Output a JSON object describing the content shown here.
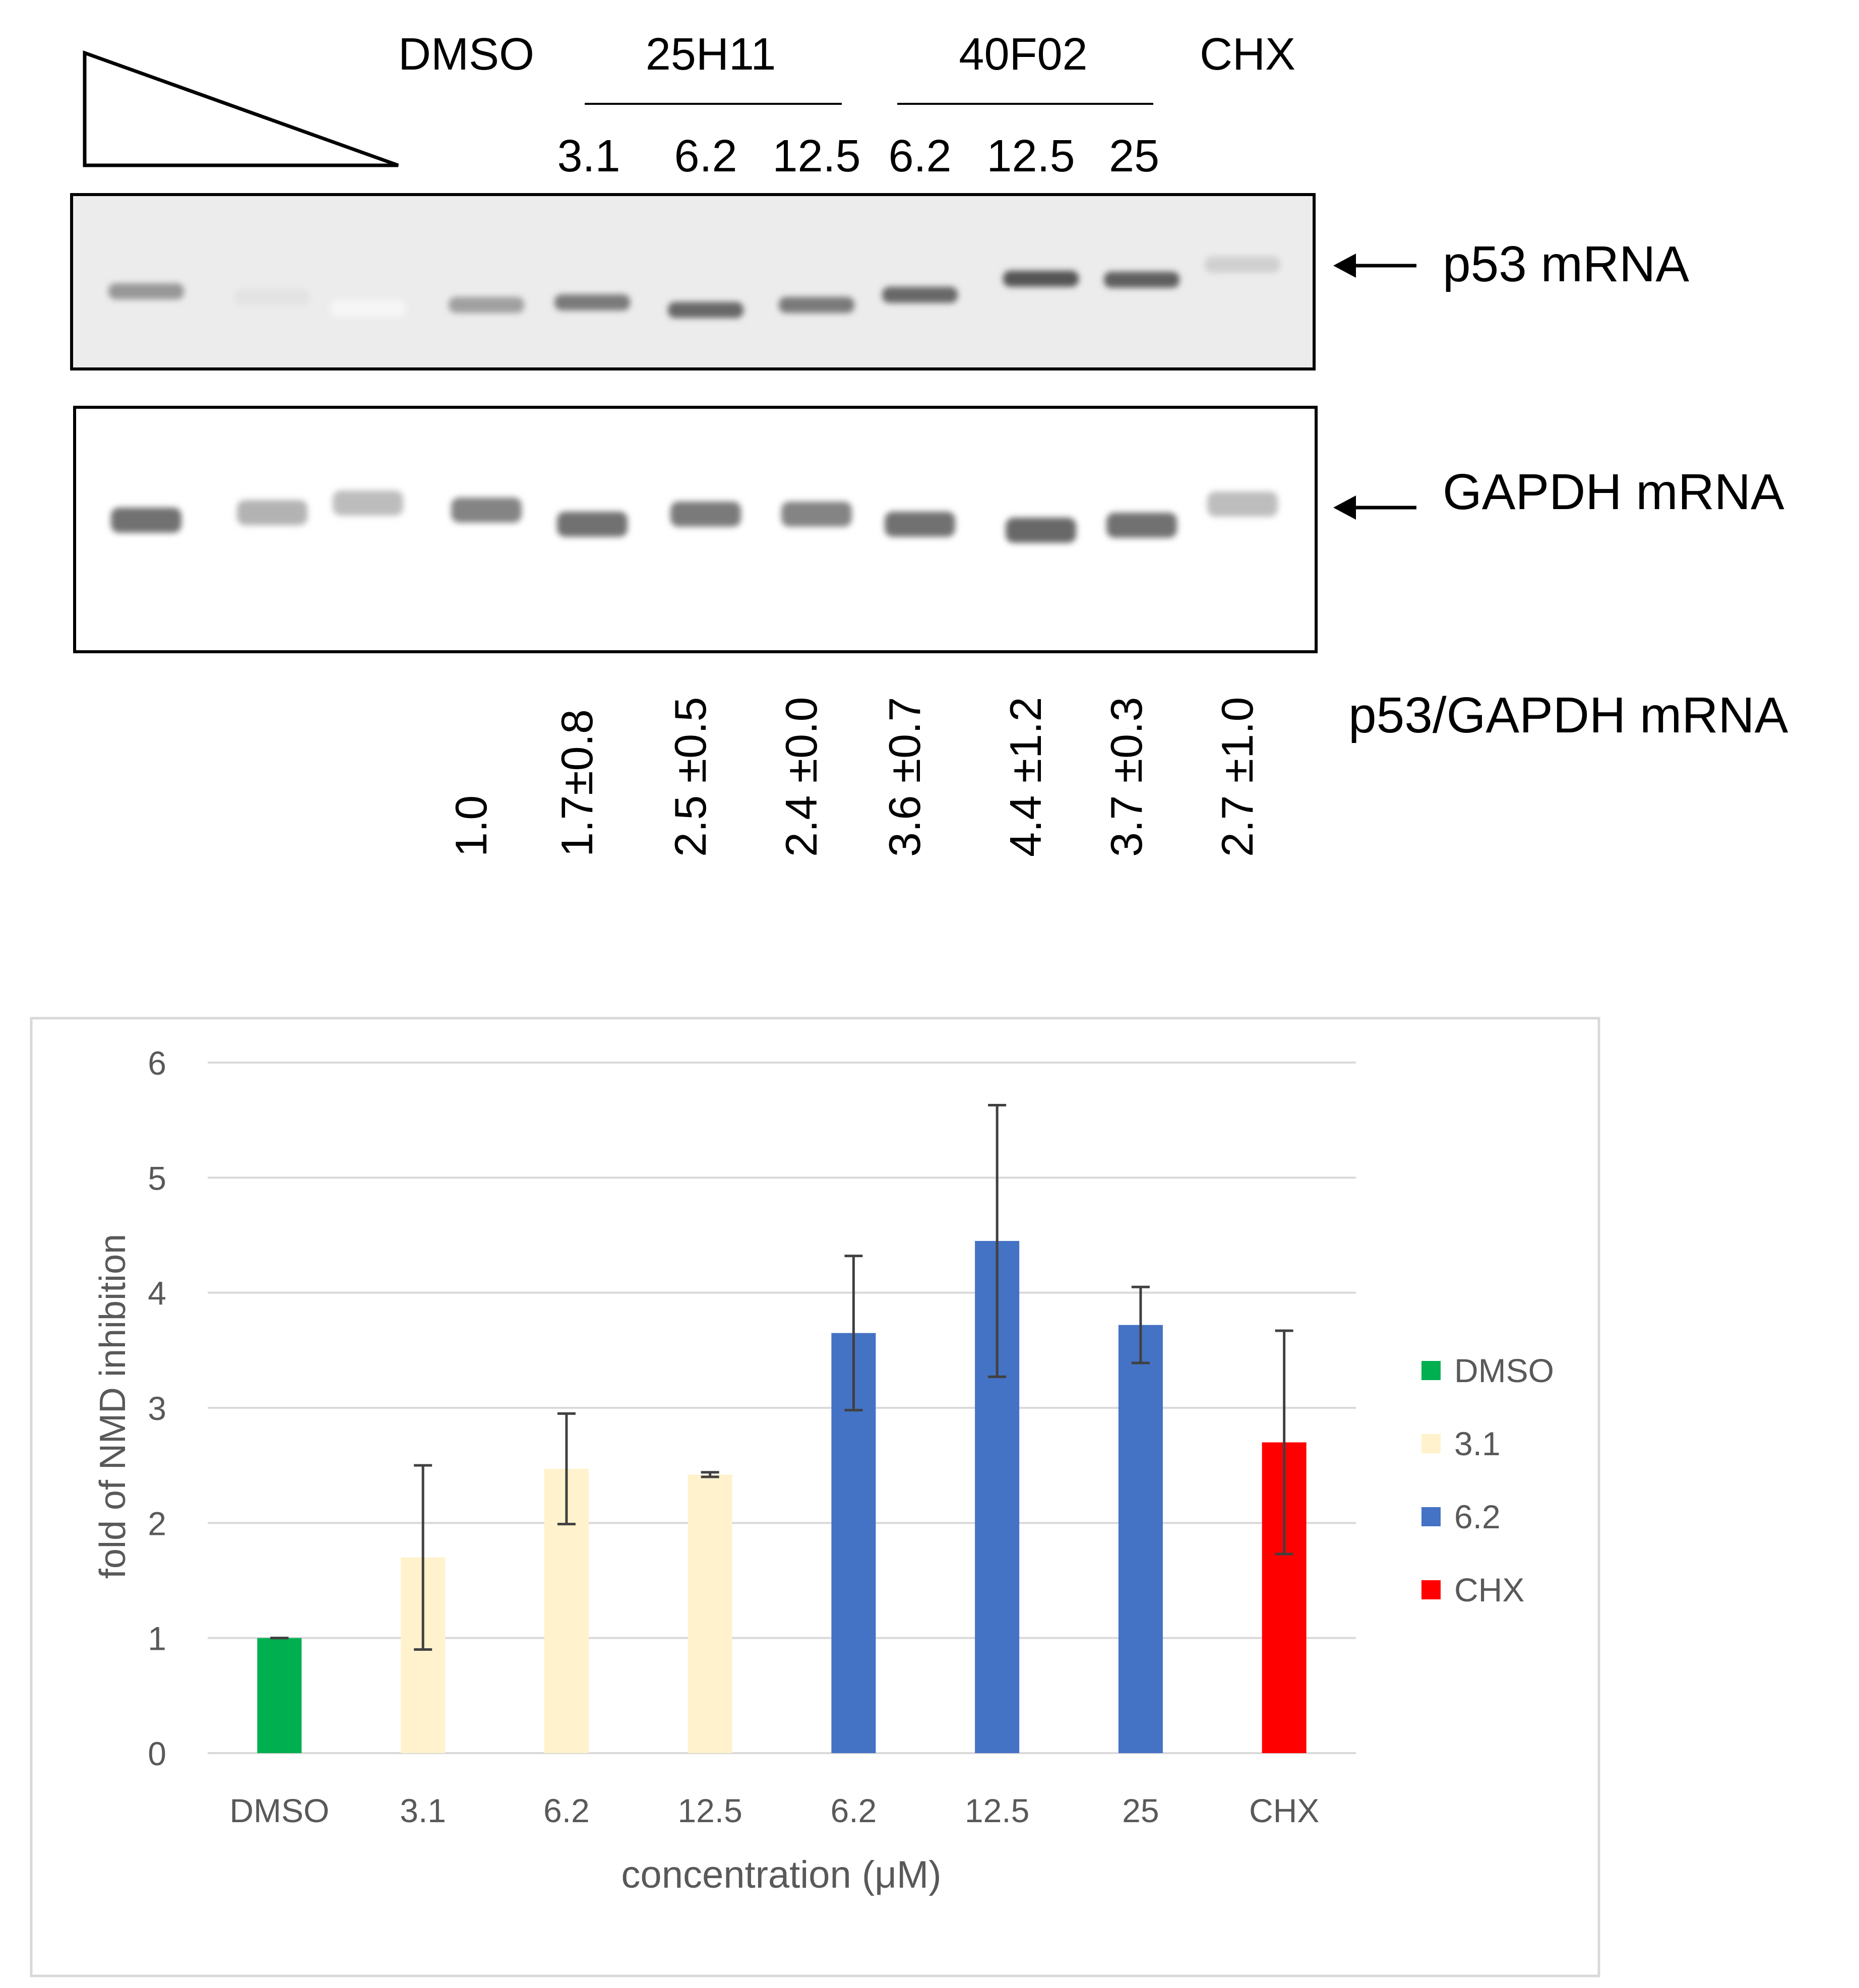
{
  "gel": {
    "group_labels": [
      "DMSO",
      "25H11",
      "40F02",
      "CHX"
    ],
    "concentrations": [
      "3.1",
      "6.2",
      "12.5",
      "6.2",
      "12.5",
      "25"
    ],
    "band_labels": [
      "p53 mRNA",
      "GAPDH mRNA"
    ],
    "ratio_label": "p53/GAPDH mRNA",
    "ratios": [
      "1.0",
      "1.7±0.8",
      "2.5 ±0.5",
      "2.4 ±0.0",
      "3.6 ±0.7",
      "4.4 ±1.2",
      "3.7 ±0.3",
      "2.7 ±1.0"
    ],
    "p53_band_intensity": [
      0.55,
      0.15,
      0.05,
      0.5,
      0.7,
      0.8,
      0.7,
      0.8,
      0.9,
      0.85,
      0.25
    ],
    "gapdh_band_intensity": [
      0.75,
      0.4,
      0.35,
      0.65,
      0.75,
      0.7,
      0.65,
      0.75,
      0.8,
      0.75,
      0.35
    ]
  },
  "chart_data": {
    "type": "bar",
    "title": "",
    "xlabel": "concentration (μM)",
    "ylabel": "fold of NMD inhibition",
    "ylim": [
      0,
      6
    ],
    "yticks": [
      "0",
      "1",
      "2",
      "3",
      "4",
      "5",
      "6"
    ],
    "categories": [
      "DMSO",
      "3.1",
      "6.2",
      "12.5",
      "6.2",
      "12.5",
      "25",
      "CHX"
    ],
    "values": [
      1.0,
      1.7,
      2.47,
      2.42,
      3.65,
      4.45,
      3.72,
      2.7
    ],
    "errors": [
      0.0,
      0.8,
      0.48,
      0.02,
      0.67,
      1.18,
      0.33,
      0.97
    ],
    "bar_series": [
      "DMSO",
      "3.1",
      "3.1",
      "3.1",
      "6.2",
      "6.2",
      "6.2",
      "CHX"
    ],
    "legend": [
      {
        "name": "DMSO",
        "color": "#00b050"
      },
      {
        "name": "3.1",
        "color": "#fff2cc"
      },
      {
        "name": "6.2",
        "color": "#4472c4"
      },
      {
        "name": "CHX",
        "color": "#ff0000"
      }
    ],
    "grid": true,
    "legend_position": "right"
  }
}
